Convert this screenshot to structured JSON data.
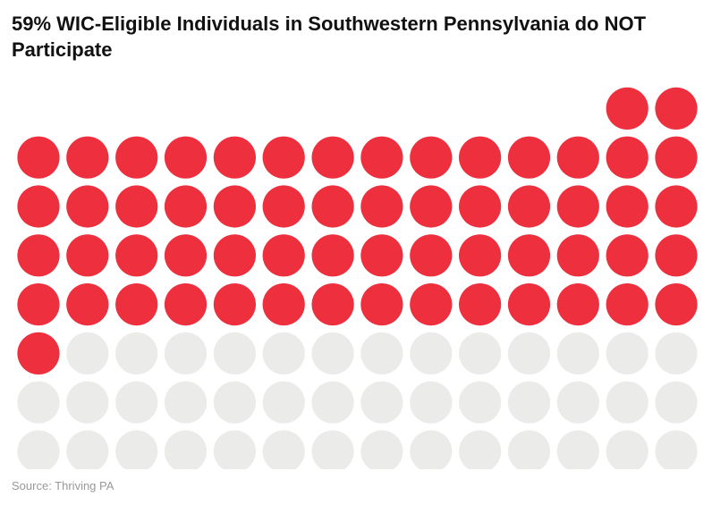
{
  "chart_data": {
    "type": "waffle",
    "title": "59% WIC-Eligible Individuals in Southwestern Pennsylvania do NOT Participate",
    "total_units": 100,
    "highlighted_units": 59,
    "highlighted_percent": 59,
    "highlight_color": "#ee2f3d",
    "base_color": "#ebebe9",
    "columns": 14,
    "source": "Source: Thriving PA"
  }
}
